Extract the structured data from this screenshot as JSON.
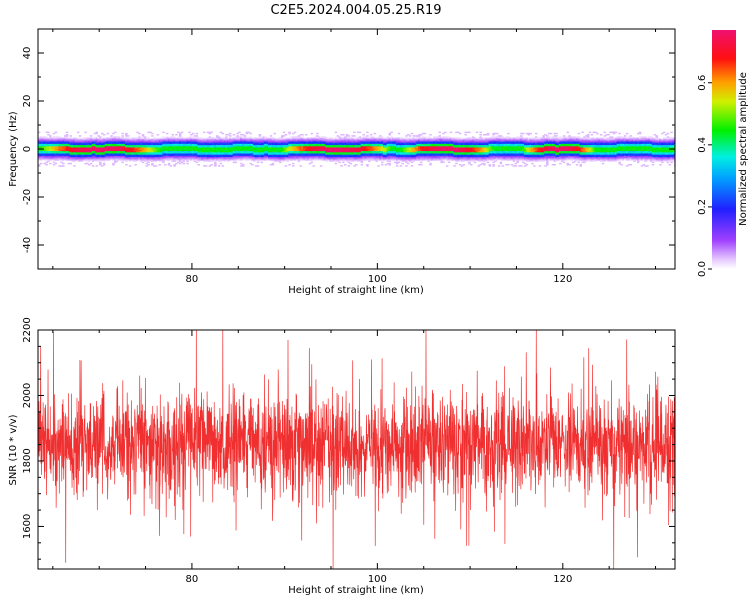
{
  "title": "C2E5.2024.004.05.25.R19",
  "colors": {
    "snr_line": "#f03030",
    "background": "#ffffff",
    "axis": "#000000"
  },
  "chart_data": [
    {
      "type": "heatmap",
      "xlabel": "Height of straight line (km)",
      "ylabel": "Frequency (Hz)",
      "xlim": [
        63.4,
        132.1
      ],
      "ylim": [
        -50,
        50
      ],
      "xticks": [
        80,
        100,
        120
      ],
      "yticks": [
        -40,
        -20,
        0,
        20,
        40
      ],
      "colorbar": {
        "label": "Normalized spectral amplitude",
        "range": [
          0,
          0.77
        ],
        "ticks": [
          0.0,
          0.2,
          0.4,
          0.6
        ],
        "colormap": "rainbow (white-purple-blue-cyan-green-yellow-orange-red-magenta)"
      },
      "band": {
        "center_hz": 0,
        "half_width_hz": 3,
        "outer_halo_half_width_hz": 5,
        "peak_regions_km": [
          [
            65,
            75
          ],
          [
            91,
            100
          ],
          [
            104,
            111
          ],
          [
            117,
            122
          ]
        ]
      }
    },
    {
      "type": "line",
      "xlabel": "Height of straight line (km)",
      "ylabel": "SNR (10 * v/v)",
      "xlim": [
        63.4,
        132.1
      ],
      "ylim": [
        1470,
        2200
      ],
      "xticks": [
        80,
        100,
        120
      ],
      "yticks": [
        1600,
        1800,
        2000,
        2200
      ],
      "series": [
        {
          "mean": 1850,
          "noise_std": 90,
          "min_dip": 1470,
          "max_spike": 2200
        }
      ]
    }
  ]
}
